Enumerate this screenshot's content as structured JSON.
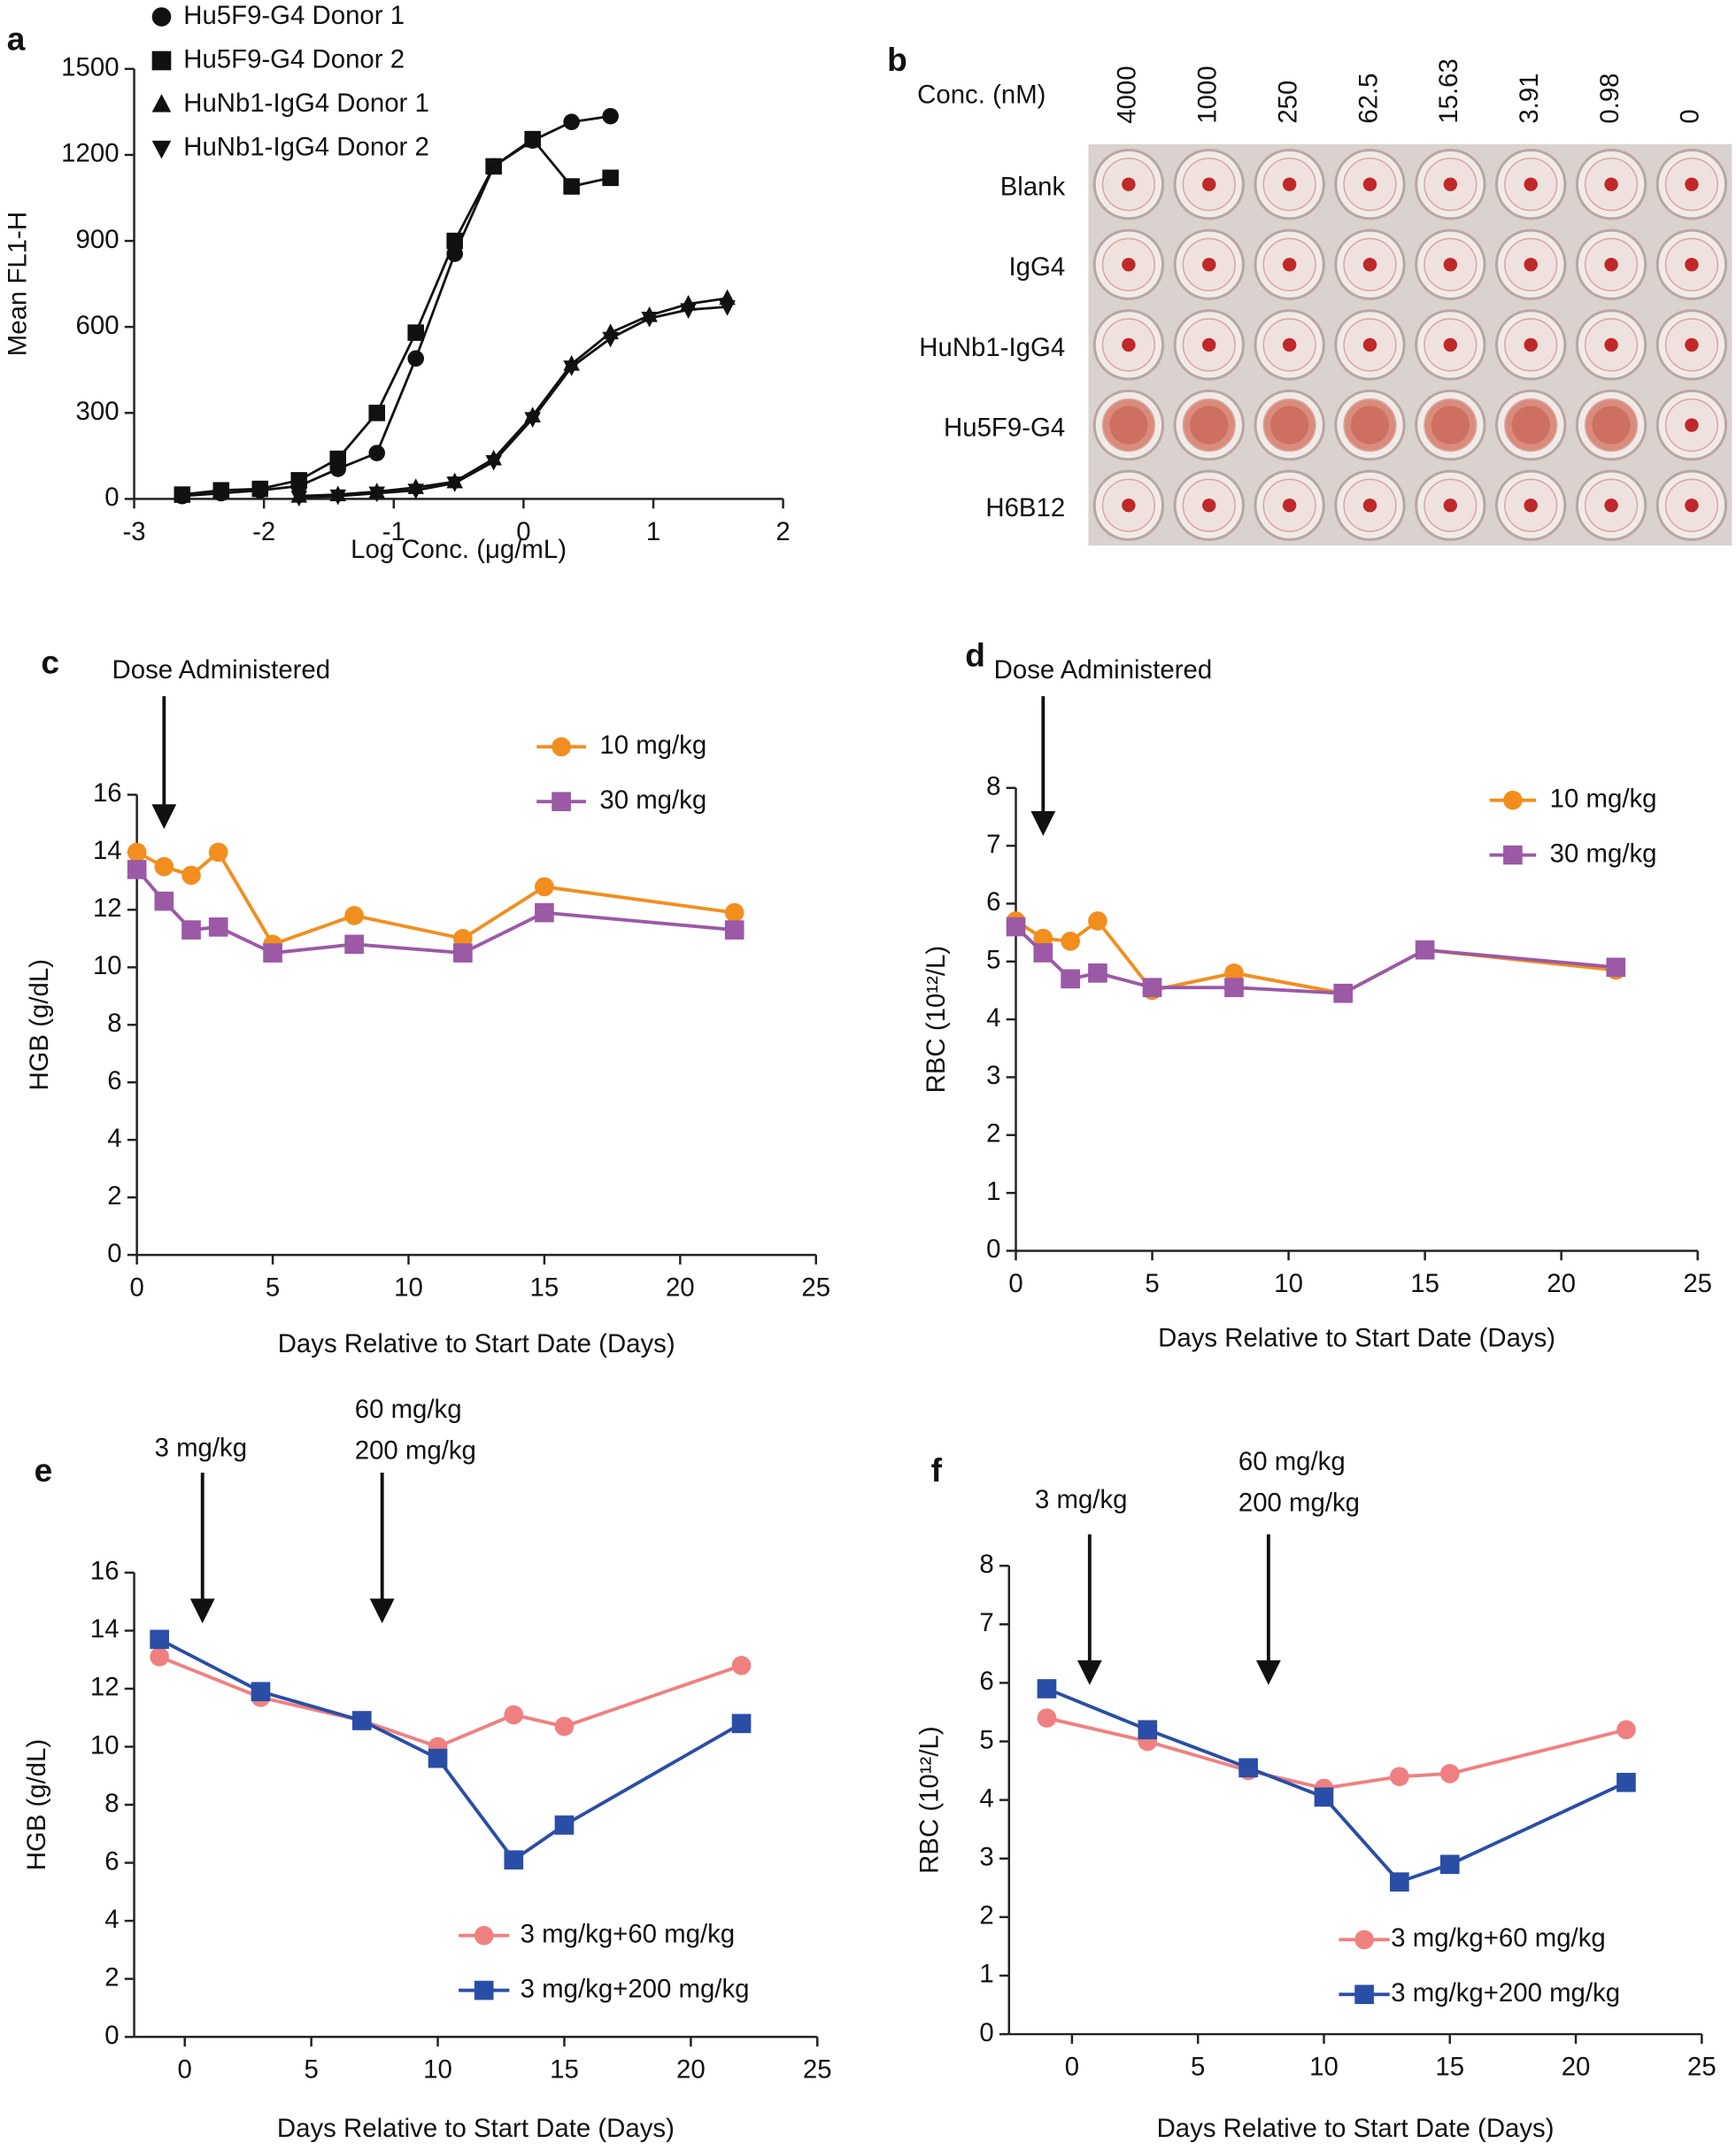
{
  "chart_data": [
    {
      "type": "scatter",
      "panel": "a",
      "ylabel": "Mean FL1-H",
      "xlabel": "Log Conc. (μg/mL)",
      "xlim": [
        -3,
        2
      ],
      "ylim": [
        0,
        1500
      ],
      "xticks": [
        -3,
        -2,
        -1,
        0,
        1,
        2
      ],
      "yticks": [
        0,
        300,
        600,
        900,
        1200,
        1500
      ],
      "series": [
        {
          "name": "Hu5F9-G4 Donor 1",
          "color": "#111111",
          "marker": "circle",
          "x": [
            -2.63,
            -2.33,
            -2.03,
            -1.73,
            -1.43,
            -1.13,
            -0.83,
            -0.53,
            -0.23,
            0.07,
            0.37,
            0.67
          ],
          "values": [
            10,
            20,
            30,
            45,
            105,
            160,
            490,
            855,
            1160,
            1250,
            1315,
            1335
          ]
        },
        {
          "name": "Hu5F9-G4 Donor 2",
          "color": "#111111",
          "marker": "square",
          "x": [
            -2.63,
            -2.33,
            -2.03,
            -1.73,
            -1.43,
            -1.13,
            -0.83,
            -0.53,
            -0.23,
            0.07,
            0.37,
            0.67
          ],
          "values": [
            15,
            30,
            35,
            65,
            140,
            300,
            580,
            900,
            1160,
            1255,
            1090,
            1120
          ]
        },
        {
          "name": "HuNb1-IgG4 Donor 1",
          "color": "#111111",
          "marker": "triangle",
          "x": [
            -1.73,
            -1.43,
            -1.13,
            -0.83,
            -0.53,
            -0.23,
            0.07,
            0.37,
            0.67,
            0.97,
            1.27,
            1.57
          ],
          "values": [
            10,
            15,
            25,
            40,
            60,
            140,
            290,
            470,
            580,
            640,
            680,
            700
          ]
        },
        {
          "name": "HuNb1-IgG4 Donor 2",
          "color": "#111111",
          "marker": "triangle-down",
          "x": [
            -1.73,
            -1.43,
            -1.13,
            -0.83,
            -0.53,
            -0.23,
            0.07,
            0.37,
            0.67,
            0.97,
            1.27,
            1.57
          ],
          "values": [
            5,
            10,
            20,
            30,
            55,
            130,
            280,
            460,
            560,
            630,
            660,
            670
          ]
        }
      ]
    },
    {
      "type": "plate",
      "panel": "b",
      "columns_title": "Conc. (nM)",
      "columns": [
        "4000",
        "1000",
        "250",
        "62.5",
        "15.63",
        "3.91",
        "0.98",
        "0"
      ],
      "rows": [
        "Blank",
        "IgG4",
        "HuNb1-IgG4",
        "Hu5F9-G4",
        "H6B12"
      ]
    },
    {
      "type": "line",
      "panel": "c",
      "ylabel": "HGB (g/dL)",
      "xlabel": "Days Relative to Start Date (Days)",
      "xlim": [
        0,
        25
      ],
      "ylim": [
        0,
        16
      ],
      "xticks": [
        0,
        5,
        10,
        15,
        20,
        25
      ],
      "yticks": [
        0,
        2,
        4,
        6,
        8,
        10,
        12,
        14,
        16
      ],
      "annotations": [
        {
          "text": [
            "Dose Administered"
          ],
          "x": 1
        }
      ],
      "x": [
        0,
        1,
        2,
        3,
        5,
        8,
        12,
        15,
        22
      ],
      "series": [
        {
          "name": "10 mg/kg",
          "color": "#f28e1e",
          "marker": "circle",
          "values": [
            14.0,
            13.5,
            13.2,
            14.0,
            10.8,
            11.8,
            11.0,
            12.8,
            11.9
          ]
        },
        {
          "name": "30 mg/kg",
          "color": "#9b59a6",
          "marker": "square",
          "values": [
            13.4,
            12.3,
            11.3,
            11.4,
            10.5,
            10.8,
            10.5,
            11.9,
            11.3
          ]
        }
      ]
    },
    {
      "type": "line",
      "panel": "d",
      "ylabel": "RBC (10¹²/L)",
      "xlabel": "Days Relative to Start Date (Days)",
      "xlim": [
        0,
        25
      ],
      "ylim": [
        0,
        8
      ],
      "xticks": [
        0,
        5,
        10,
        15,
        20,
        25
      ],
      "yticks": [
        0,
        1,
        2,
        3,
        4,
        5,
        6,
        7,
        8
      ],
      "annotations": [
        {
          "text": [
            "Dose Administered"
          ],
          "x": 1
        }
      ],
      "x": [
        0,
        1,
        2,
        3,
        5,
        8,
        12,
        15,
        22
      ],
      "series": [
        {
          "name": "10 mg/kg",
          "color": "#f28e1e",
          "marker": "circle",
          "values": [
            5.7,
            5.4,
            5.35,
            5.7,
            4.5,
            4.8,
            4.45,
            5.2,
            4.85
          ]
        },
        {
          "name": "30 mg/kg",
          "color": "#9b59a6",
          "marker": "square",
          "values": [
            5.6,
            5.15,
            4.7,
            4.8,
            4.55,
            4.55,
            4.45,
            5.2,
            4.9
          ]
        }
      ]
    },
    {
      "type": "line",
      "panel": "e",
      "ylabel": "HGB (g/dL)",
      "xlabel": "Days Relative to Start Date (Days)",
      "xlim": [
        -2,
        25
      ],
      "ylim": [
        0,
        16
      ],
      "xticks": [
        0,
        5,
        10,
        15,
        20,
        25
      ],
      "yticks": [
        0,
        2,
        4,
        6,
        8,
        10,
        12,
        14,
        16
      ],
      "annotations": [
        {
          "text": [
            "3 mg/kg"
          ],
          "x": 0.7
        },
        {
          "text": [
            "60 mg/kg",
            "200 mg/kg"
          ],
          "x": 7.8
        }
      ],
      "x": [
        -1,
        3,
        7,
        10,
        13,
        15,
        22
      ],
      "series": [
        {
          "name": "3 mg/kg+60 mg/kg",
          "color": "#f08080",
          "marker": "circle",
          "values": [
            13.1,
            11.7,
            10.9,
            10.0,
            11.1,
            10.7,
            12.8
          ]
        },
        {
          "name": "3 mg/kg+200 mg/kg",
          "color": "#2a4ea6",
          "marker": "square",
          "values": [
            13.7,
            11.9,
            10.9,
            9.6,
            6.1,
            7.3,
            10.8
          ]
        }
      ]
    },
    {
      "type": "line",
      "panel": "f",
      "ylabel": "RBC (10¹²/L)",
      "xlabel": "Days Relative to Start Date (Days)",
      "xlim": [
        -2.5,
        25
      ],
      "ylim": [
        0,
        8
      ],
      "xticks": [
        0,
        5,
        10,
        15,
        20,
        25
      ],
      "yticks": [
        0,
        1,
        2,
        3,
        4,
        5,
        6,
        7,
        8
      ],
      "annotations": [
        {
          "text": [
            "3 mg/kg"
          ],
          "x": 0.7
        },
        {
          "text": [
            "60 mg/kg",
            "200 mg/kg"
          ],
          "x": 7.8
        }
      ],
      "x": [
        -1,
        3,
        7,
        10,
        13,
        15,
        22
      ],
      "series": [
        {
          "name": "3 mg/kg+60 mg/kg",
          "color": "#f08080",
          "marker": "circle",
          "values": [
            5.4,
            5.0,
            4.5,
            4.2,
            4.4,
            4.45,
            5.2
          ]
        },
        {
          "name": "3 mg/kg+200 mg/kg",
          "color": "#2a4ea6",
          "marker": "square",
          "values": [
            5.9,
            5.2,
            4.55,
            4.05,
            2.6,
            2.9,
            4.3
          ]
        }
      ]
    }
  ]
}
